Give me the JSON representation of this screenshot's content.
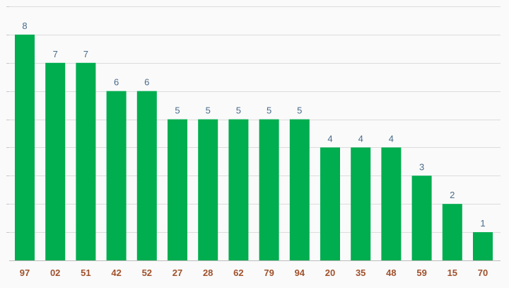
{
  "colors": {
    "bar": "#00ad4f",
    "value_label": "#4a6b8a",
    "category_label": "#a0522d",
    "background": "#fafafa"
  },
  "chart_data": {
    "type": "bar",
    "title": "",
    "xlabel": "",
    "ylabel": "",
    "ylim": [
      0,
      9
    ],
    "grid": true,
    "categories": [
      "97",
      "02",
      "51",
      "42",
      "52",
      "27",
      "28",
      "62",
      "79",
      "94",
      "20",
      "35",
      "48",
      "59",
      "15",
      "70"
    ],
    "values": [
      8,
      7,
      7,
      6,
      6,
      5,
      5,
      5,
      5,
      5,
      4,
      4,
      4,
      3,
      2,
      1
    ]
  }
}
